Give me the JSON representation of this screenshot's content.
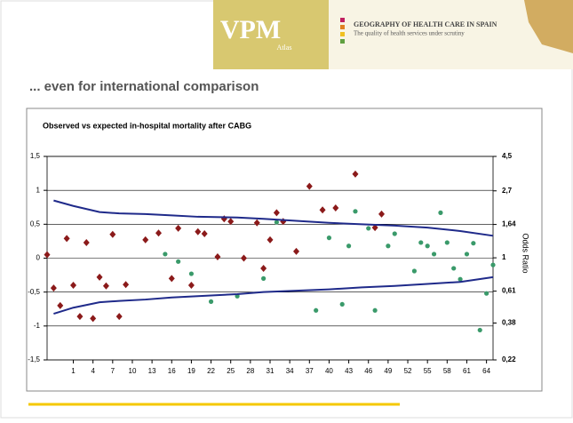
{
  "header": {
    "logo": "VPM",
    "logo_sub": "Atlas",
    "title": "GEOGRAPHY OF HEALTH CARE IN SPAIN",
    "subtitle": "The quality of health services under scrutiny"
  },
  "slide": {
    "heading": "... even for international comparison"
  },
  "chart_data": {
    "type": "scatter",
    "title": "Observed vs expected in-hospital mortality after CABG",
    "y2_label": "Odds Ratio",
    "xlim": [
      -3,
      65
    ],
    "xticks": [
      1,
      4,
      7,
      10,
      13,
      16,
      19,
      22,
      25,
      28,
      31,
      34,
      37,
      40,
      43,
      46,
      49,
      52,
      55,
      58,
      61,
      64
    ],
    "ylim": [
      -1.5,
      1.5
    ],
    "yticks": [
      {
        "value": -1.5,
        "label": "-1,5"
      },
      -1,
      {
        "value": -0.5,
        "label": "-0,5"
      },
      0,
      {
        "value": 0.5,
        "label": "0,5"
      },
      1,
      {
        "value": 1.5,
        "label": "1,5"
      }
    ],
    "y2lim": [
      0.22,
      4.5
    ],
    "y2_log": true,
    "y2ticks": [
      {
        "value": 0.22,
        "label": "0,22"
      },
      {
        "value": 0.38,
        "label": "0,38"
      },
      {
        "value": 0.61,
        "label": "0,61"
      },
      1,
      {
        "value": 1.64,
        "label": "1,64"
      },
      {
        "value": 2.7,
        "label": "2,7"
      },
      {
        "value": 4.5,
        "label": "4,5"
      }
    ],
    "grid": true,
    "series": [
      {
        "type": "scatter",
        "marker": "diamond",
        "color": "#8b1a1a",
        "x": [
          -3,
          -2,
          -1,
          0,
          1,
          2,
          3,
          4,
          5,
          6,
          7,
          8,
          9,
          12,
          14,
          16,
          17,
          19,
          20,
          21,
          23,
          24,
          25,
          27,
          29,
          30,
          31,
          32,
          33,
          35,
          37,
          39,
          41,
          44,
          47,
          48
        ],
        "values": [
          0.05,
          -0.44,
          -0.7,
          0.29,
          -0.4,
          -0.86,
          0.23,
          -0.89,
          -0.28,
          -0.41,
          0.35,
          -0.86,
          -0.39,
          0.27,
          0.37,
          -0.3,
          0.44,
          -0.4,
          0.39,
          0.36,
          0.02,
          0.58,
          0.54,
          0.0,
          0.52,
          -0.15,
          0.27,
          0.67,
          0.54,
          0.1,
          1.06,
          0.71,
          0.74,
          1.24,
          0.45,
          0.65
        ]
      },
      {
        "type": "scatter",
        "marker": "circle",
        "color": "#3a9a6a",
        "x": [
          15,
          17,
          19,
          22,
          26,
          30,
          32,
          38,
          40,
          42,
          43,
          44,
          46,
          47,
          49,
          50,
          53,
          54,
          55,
          56,
          57,
          58,
          59,
          60,
          61,
          62,
          63,
          64,
          65
        ],
        "values": [
          0.06,
          -0.05,
          -0.23,
          -0.64,
          -0.56,
          -0.3,
          0.53,
          -0.77,
          0.3,
          -0.68,
          0.18,
          0.69,
          0.44,
          -0.77,
          0.18,
          0.36,
          -0.19,
          0.23,
          0.18,
          0.06,
          0.67,
          0.23,
          -0.15,
          -0.31,
          0.06,
          0.22,
          -1.06,
          -0.52,
          -0.1
        ]
      },
      {
        "type": "line",
        "color": "#1f2a8a",
        "x": [
          -2,
          1,
          5,
          8,
          12,
          16,
          20,
          26,
          30,
          35,
          40,
          45,
          50,
          55,
          60,
          65
        ],
        "values": [
          0.85,
          0.77,
          0.68,
          0.66,
          0.65,
          0.63,
          0.61,
          0.6,
          0.58,
          0.55,
          0.52,
          0.5,
          0.48,
          0.45,
          0.4,
          0.33
        ]
      },
      {
        "type": "line",
        "color": "#1f2a8a",
        "x": [
          -2,
          1,
          5,
          8,
          12,
          16,
          20,
          26,
          30,
          35,
          40,
          45,
          50,
          55,
          60,
          65
        ],
        "values": [
          -0.82,
          -0.73,
          -0.65,
          -0.63,
          -0.61,
          -0.58,
          -0.56,
          -0.53,
          -0.5,
          -0.48,
          -0.46,
          -0.43,
          -0.41,
          -0.38,
          -0.35,
          -0.28
        ]
      }
    ]
  }
}
